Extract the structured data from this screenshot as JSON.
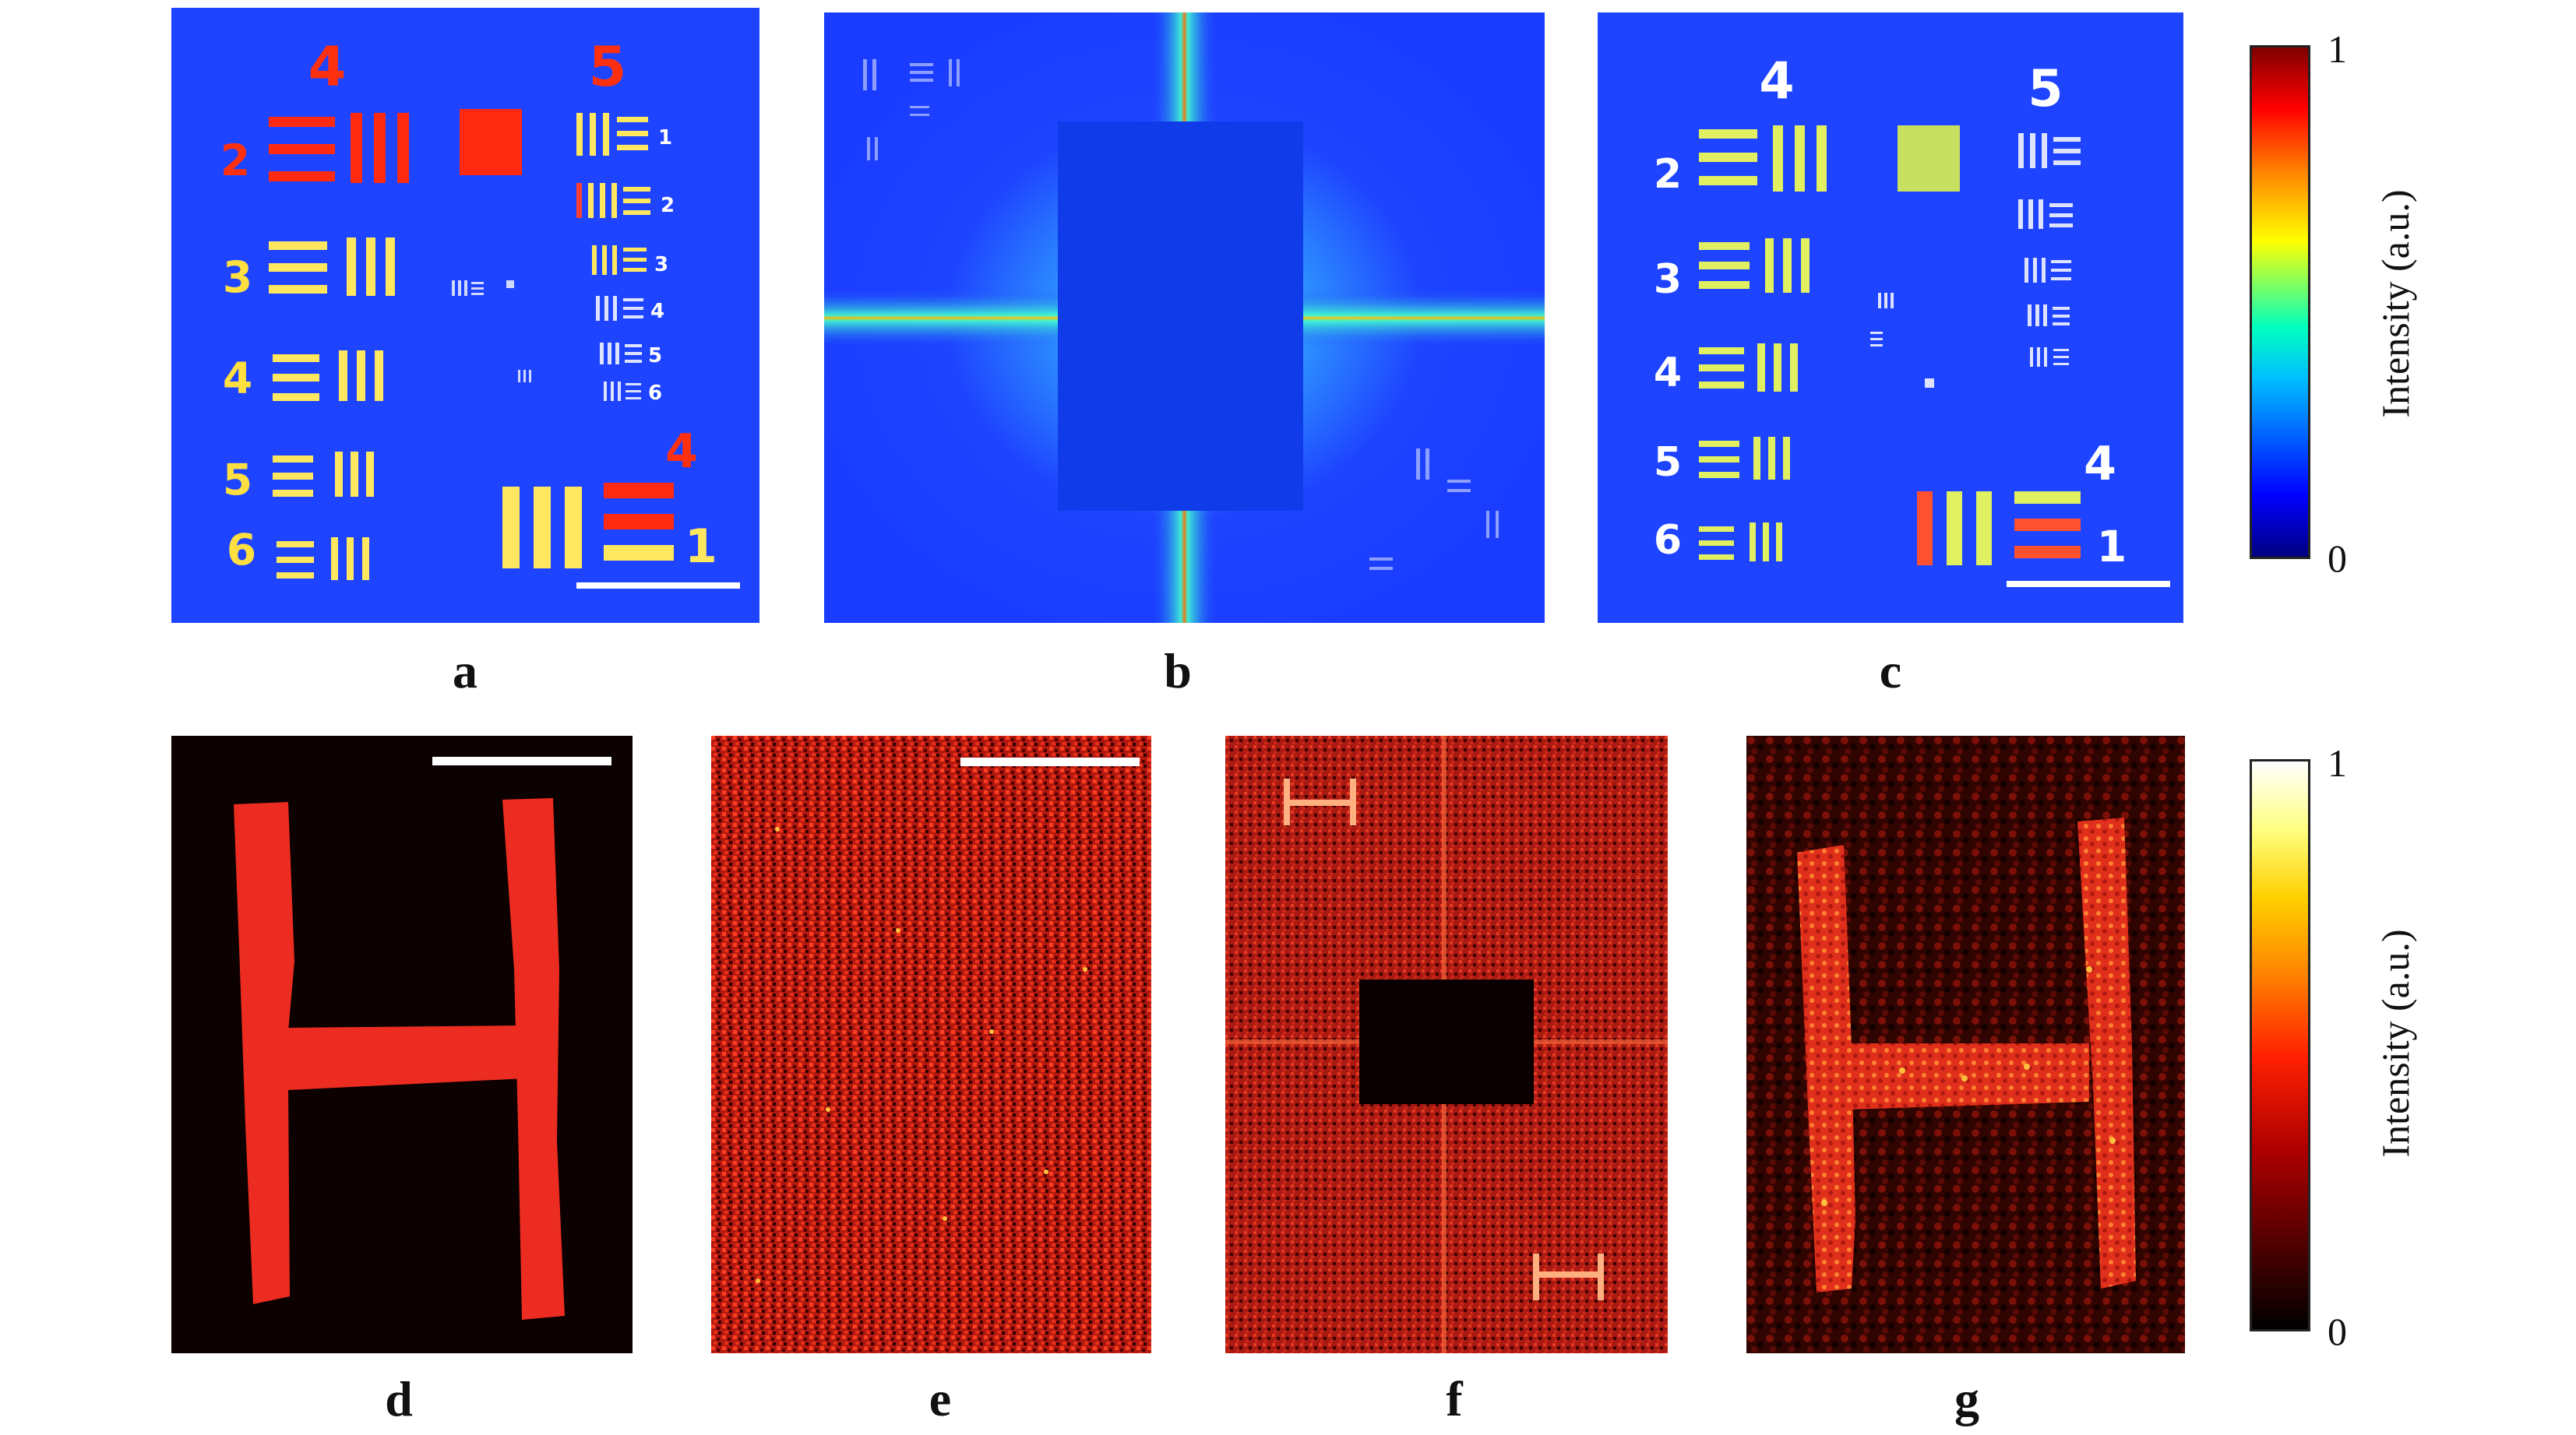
{
  "panels": [
    {
      "id": "a",
      "label": "a"
    },
    {
      "id": "b",
      "label": "b"
    },
    {
      "id": "c",
      "label": "c"
    },
    {
      "id": "d",
      "label": "d"
    },
    {
      "id": "e",
      "label": "e"
    },
    {
      "id": "f",
      "label": "f"
    },
    {
      "id": "g",
      "label": "g"
    }
  ],
  "target_a": {
    "group_numbers": [
      "4",
      "5",
      "4"
    ],
    "element_numbers": [
      "2",
      "3",
      "4",
      "5",
      "6"
    ],
    "small_numbers": [
      "1",
      "2",
      "3",
      "4",
      "5",
      "6"
    ],
    "corner_number": "1"
  },
  "target_c": {
    "group_numbers": [
      "4",
      "5",
      "4"
    ],
    "element_numbers": [
      "2",
      "3",
      "4",
      "5",
      "6"
    ],
    "corner_number": "1"
  },
  "colorbar_top": {
    "max_label": "1",
    "min_label": "0",
    "title": "Intensity (a.u.)",
    "colormap": "jet",
    "stops": [
      "#000080",
      "#0000ff",
      "#00bfff",
      "#00ffc0",
      "#ffff00",
      "#ff8000",
      "#ff0000",
      "#800000"
    ]
  },
  "colorbar_bottom": {
    "max_label": "1",
    "min_label": "0",
    "title": "Intensity (a.u.)",
    "colormap": "hot",
    "stops": [
      "#000000",
      "#500000",
      "#b00000",
      "#ff2000",
      "#ff8000",
      "#ffd000",
      "#ffff80",
      "#ffffff"
    ]
  },
  "colors": {
    "jet_background": "#1a3cff",
    "hot_red": "#e8281e",
    "hot_dark": "#200000"
  }
}
